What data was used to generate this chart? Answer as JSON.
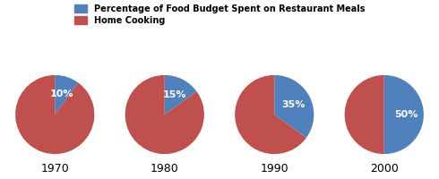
{
  "legend_labels": [
    "Percentage of Food Budget Spent on Restaurant Meals",
    "Home Cooking"
  ],
  "years": [
    "1970",
    "1980",
    "1990",
    "2000"
  ],
  "restaurant_pcts": [
    10,
    15,
    35,
    50
  ],
  "blue_color": "#4F81BD",
  "red_color": "#C0504D",
  "label_color": "#FFFFFF",
  "label_fontsize": 8,
  "year_fontsize": 9,
  "background_color": "#FFFFFF"
}
